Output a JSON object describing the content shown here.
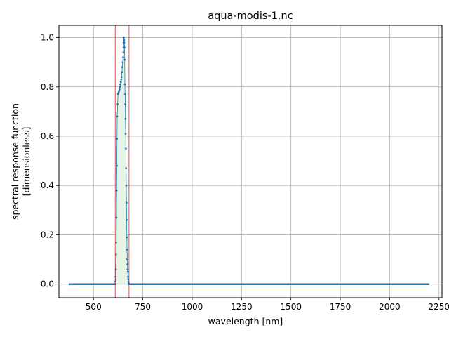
{
  "chart_data": {
    "type": "line",
    "title": "aqua-modis-1.nc",
    "xlabel": "wavelength [nm]",
    "ylabel_lines": [
      "spectral response function",
      "[dimensionless]"
    ],
    "xlim": [
      325,
      2265
    ],
    "ylim": [
      -0.055,
      1.05
    ],
    "xticks": [
      500,
      750,
      1000,
      1250,
      1500,
      1750,
      2000,
      2250
    ],
    "yticks": [
      0.0,
      0.2,
      0.4,
      0.6,
      0.8,
      1.0
    ],
    "ytick_labels": [
      "0.0",
      "0.2",
      "0.4",
      "0.6",
      "0.8",
      "1.0"
    ],
    "grid": true,
    "band_limits": [
      610,
      680
    ],
    "baseline_range": [
      375,
      2200
    ],
    "series": [
      {
        "x": [
          610,
          611,
          612,
          613,
          614,
          615,
          616,
          617,
          618,
          619,
          620,
          622,
          624,
          626,
          628,
          630,
          632,
          634,
          636,
          638,
          640,
          642,
          644,
          646,
          648,
          650,
          651,
          652,
          653,
          654,
          655,
          656,
          657,
          658,
          659,
          660,
          661,
          662,
          663,
          664,
          665,
          666,
          667,
          668,
          669,
          670,
          671,
          672,
          673,
          674,
          675,
          676,
          677,
          678,
          679,
          680
        ],
        "y": [
          0.0,
          0.01,
          0.03,
          0.06,
          0.12,
          0.17,
          0.27,
          0.38,
          0.48,
          0.59,
          0.68,
          0.73,
          0.77,
          0.775,
          0.78,
          0.785,
          0.79,
          0.8,
          0.81,
          0.82,
          0.83,
          0.84,
          0.86,
          0.88,
          0.9,
          0.92,
          0.94,
          0.96,
          0.98,
          1.0,
          0.99,
          0.98,
          0.96,
          0.91,
          0.81,
          0.77,
          0.73,
          0.67,
          0.61,
          0.55,
          0.47,
          0.4,
          0.33,
          0.26,
          0.19,
          0.14,
          0.1,
          0.08,
          0.06,
          0.05,
          0.03,
          0.02,
          0.01,
          0.005,
          0.0,
          0.0
        ]
      }
    ]
  }
}
